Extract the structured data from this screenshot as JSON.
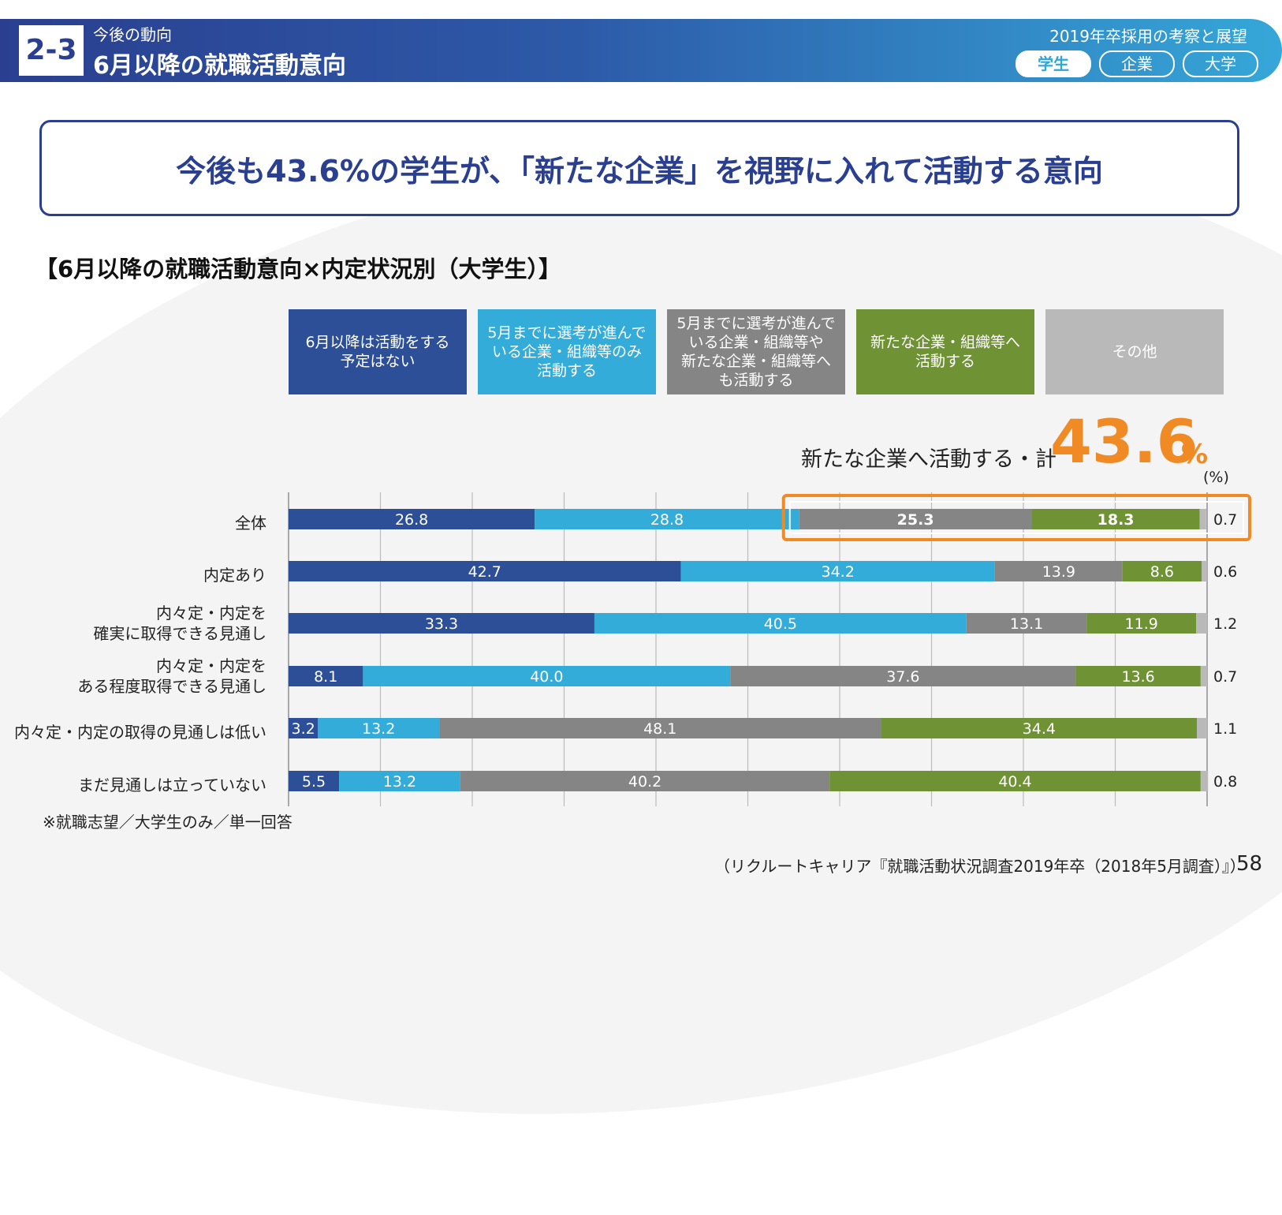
{
  "header": {
    "section_number": "2-3",
    "subtitle": "今後の動向",
    "title": "6月以降の就職活動意向",
    "right_caption": "2019年卒採用の考察と展望",
    "tabs": [
      {
        "label": "学生",
        "active": true
      },
      {
        "label": "企業",
        "active": false
      },
      {
        "label": "大学",
        "active": false
      }
    ]
  },
  "headline": "今後も43.6%の学生が､「新たな企業」を視野に入れて活動する意向",
  "chart_title": "【6月以降の就職活動意向×内定状況別（大学生）】",
  "highlight": {
    "label": "新たな企業へ活動する・計",
    "value": "43.6",
    "unit": "%"
  },
  "unit_label": "(%)",
  "chart_data": {
    "type": "bar",
    "orientation": "horizontal",
    "stacked": true,
    "xlim": [
      0,
      100
    ],
    "categories": [
      "全体",
      "内定あり",
      "内々定・内定を\n確実に取得できる見通し",
      "内々定・内定を\nある程度取得できる見通し",
      "内々定・内定の取得の見通しは低い",
      "まだ見通しは立っていない"
    ],
    "series": [
      {
        "name": "6月以降は活動をする予定はない",
        "legend_text": "6月以降は活動をする\n予定はない",
        "color": "#2d4f97",
        "values": [
          26.8,
          42.7,
          33.3,
          8.1,
          3.2,
          5.5
        ]
      },
      {
        "name": "5月までに選考が進んでいる企業・組織等のみ活動する",
        "legend_text": "5月までに選考が進んで\nいる企業・組織等のみ\n活動する",
        "color": "#33acd9",
        "values": [
          28.8,
          34.2,
          40.5,
          40.0,
          13.2,
          13.2
        ]
      },
      {
        "name": "5月までに選考が進んでいる企業・組織等や新たな企業・組織等へも活動する",
        "legend_text": "5月までに選考が進んで\nいる企業・組織等や\n新たな企業・組織等へ\nも活動する",
        "color": "#858585",
        "values": [
          25.3,
          13.9,
          13.1,
          37.6,
          48.1,
          40.2
        ]
      },
      {
        "name": "新たな企業・組織等へ活動する",
        "legend_text": "新たな企業・組織等へ\n活動する",
        "color": "#6f9234",
        "values": [
          18.3,
          8.6,
          11.9,
          13.6,
          34.4,
          40.4
        ]
      },
      {
        "name": "その他",
        "legend_text": "その他",
        "color": "#b9b9b9",
        "values": [
          0.7,
          0.6,
          1.2,
          0.7,
          1.1,
          0.8
        ]
      }
    ],
    "highlighted_row": 0,
    "highlighted_series": [
      2,
      3
    ]
  },
  "footnote": "※就職志望／大学生のみ／単一回答",
  "source": "（リクルートキャリア『就職活動状況調査2019年卒（2018年5月調査）』）",
  "page_number": "58"
}
